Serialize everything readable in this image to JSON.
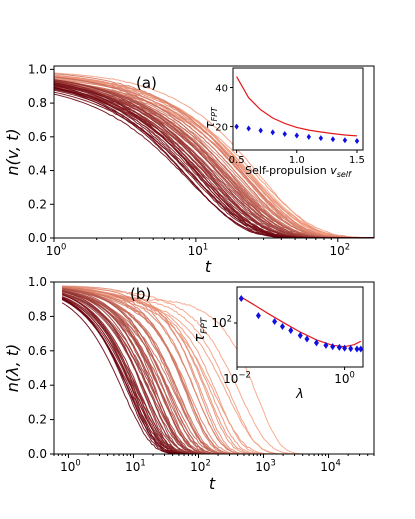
{
  "colors": {
    "light_curve": "#f9a585",
    "dark_curve": "#67000d",
    "inset_model": "#e41a1c",
    "inset_data": "#1010e0",
    "axis": "#000000"
  },
  "chart_data": [
    {
      "id": "a",
      "type": "line",
      "panel_label": "(a)",
      "xlabel": "t",
      "ylabel": "n(v, t)",
      "xscale": "log",
      "xlim": [
        1,
        180
      ],
      "ylim": [
        0,
        1.02
      ],
      "xticks": [
        {
          "v": 1,
          "b": "10",
          "e": "0"
        },
        {
          "v": 10,
          "b": "10",
          "e": "1"
        },
        {
          "v": 100,
          "b": "10",
          "e": "2"
        }
      ],
      "yticks": [
        "0.0",
        "0.2",
        "0.4",
        "0.6",
        "0.8",
        "1.0"
      ],
      "ytick_values": [
        0,
        0.2,
        0.4,
        0.6,
        0.8,
        1.0
      ],
      "curve_family": {
        "count": 60,
        "colormap": "Reds (light = lowest self-propulsion, dark = highest)",
        "form": "n = exp(-(t/tau)^beta) approx.",
        "tau_range": [
          9,
          28
        ],
        "x_range": [
          1,
          180
        ]
      },
      "inset": {
        "xlabel_text": "Self-propulsion ",
        "xlabel_var": "v",
        "xlabel_sub": "self",
        "ylabel_var": "τ",
        "ylabel_sub": "FPT",
        "xscale": "linear",
        "xlim": [
          0.47,
          1.55
        ],
        "ylim": [
          8,
          50
        ],
        "xticks": [
          "0.5",
          "1.0",
          "1.5"
        ],
        "xtick_values": [
          0.5,
          1.0,
          1.5
        ],
        "yticks": [
          "20",
          "40"
        ],
        "ytick_values": [
          20,
          40
        ],
        "series": [
          {
            "style": "line",
            "x": [
              0.5,
              0.6,
              0.7,
              0.8,
              0.9,
              1.0,
              1.1,
              1.2,
              1.3,
              1.4,
              1.5
            ],
            "y": [
              45.6,
              34.8,
              28.6,
              24.4,
              21.6,
              19.6,
              18.2,
              17.2,
              16.4,
              15.7,
              15.2
            ]
          },
          {
            "style": "markers",
            "x": [
              0.5,
              0.6,
              0.7,
              0.8,
              0.9,
              1.0,
              1.1,
              1.2,
              1.3,
              1.4,
              1.5
            ],
            "y": [
              20.0,
              19.0,
              18.0,
              17.0,
              16.2,
              15.4,
              14.7,
              14.1,
              13.5,
              13.0,
              12.6
            ]
          }
        ]
      }
    },
    {
      "id": "b",
      "type": "line",
      "panel_label": "(b)",
      "xlabel": "t",
      "ylabel": "n(λ, t)",
      "xscale": "log",
      "xlim": [
        0.6,
        50000
      ],
      "ylim": [
        0,
        1.0
      ],
      "xticks": [
        {
          "v": 1,
          "b": "10",
          "e": "0"
        },
        {
          "v": 10,
          "b": "10",
          "e": "1"
        },
        {
          "v": 100,
          "b": "10",
          "e": "2"
        },
        {
          "v": 1000,
          "b": "10",
          "e": "3"
        },
        {
          "v": 10000,
          "b": "10",
          "e": "4"
        }
      ],
      "yticks": [
        "0.0",
        "0.2",
        "0.4",
        "0.6",
        "0.8",
        "1.0"
      ],
      "ytick_values": [
        0,
        0.2,
        0.4,
        0.6,
        0.8,
        1.0
      ],
      "curve_family": {
        "count": 60,
        "colormap": "Reds (light = smallest lambda, dark = largest lambda)",
        "form": "n = exp(-(t/tau)^beta) approx.",
        "tau_range": [
          8,
          900
        ],
        "x_range": [
          0.8,
          40000
        ]
      },
      "inset": {
        "xlabel_var": "λ",
        "ylabel_var": "τ",
        "ylabel_sub": "FPT",
        "xscale": "log",
        "yscale": "log",
        "xlim": [
          0.01,
          2.2
        ],
        "ylim": [
          6,
          1000
        ],
        "xticks": [
          {
            "v": 0.01,
            "b": "10",
            "e": "−2"
          },
          {
            "v": 1,
            "b": "10",
            "e": "0"
          }
        ],
        "yticks": [
          {
            "v": 100,
            "b": "10",
            "e": "2"
          }
        ],
        "series": [
          {
            "style": "line",
            "x": [
              0.012,
              0.02,
              0.04,
              0.08,
              0.15,
              0.3,
              0.6,
              1.0,
              1.5,
              2.0
            ],
            "y": [
              520,
              330,
              175,
              95,
              56,
              34,
              24,
              22,
              25,
              31
            ]
          },
          {
            "style": "markers",
            "x": [
              0.012,
              0.025,
              0.05,
              0.07,
              0.1,
              0.15,
              0.2,
              0.3,
              0.45,
              0.6,
              0.8,
              1.0,
              1.3,
              1.7,
              2.0
            ],
            "y": [
              480,
              160,
              110,
              80,
              62,
              45,
              36,
              28,
              24,
              22,
              21,
              20,
              19.5,
              19,
              19
            ]
          }
        ]
      }
    }
  ]
}
